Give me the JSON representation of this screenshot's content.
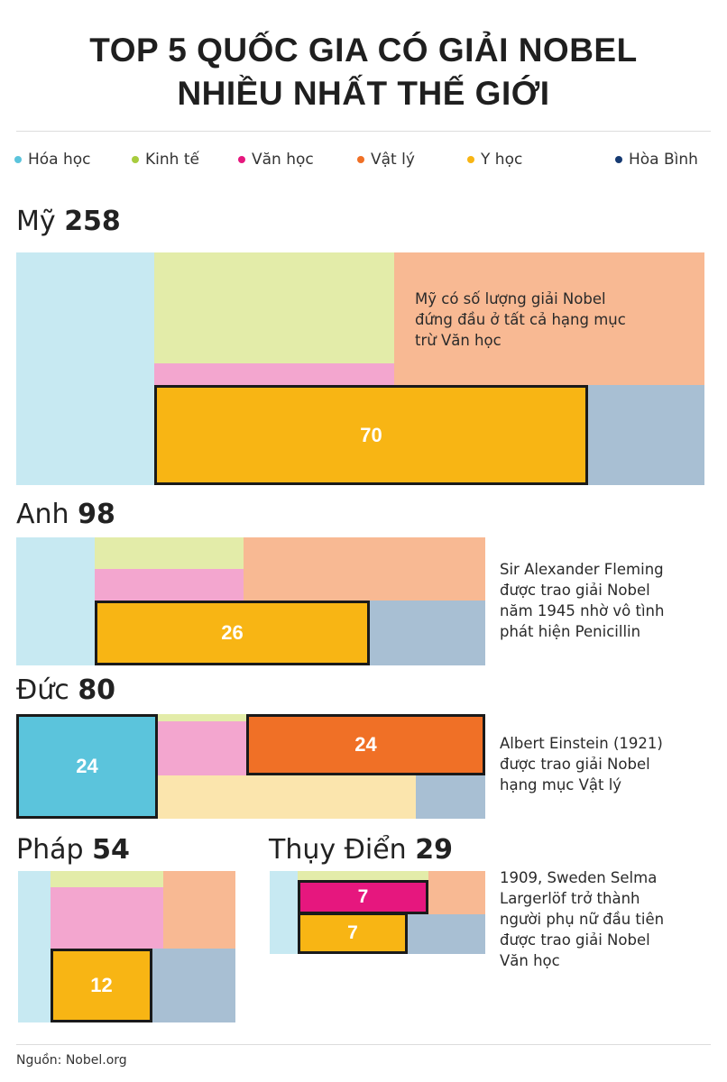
{
  "header": {
    "title_line1": "TOP 5 QUỐC GIA CÓ GIẢI NOBEL",
    "title_line2": "NHIỀU NHẤT THẾ GIỚI"
  },
  "legend": [
    {
      "label": "Hóa học",
      "color": "#5bc4dc"
    },
    {
      "label": "Kinh tế",
      "color": "#a8cc3e"
    },
    {
      "label": "Văn học",
      "color": "#e6177e"
    },
    {
      "label": "Vật lý",
      "color": "#f07026"
    },
    {
      "label": "Y học",
      "color": "#f8b514"
    },
    {
      "label": "Hòa Bình",
      "color": "#163a72"
    }
  ],
  "chart_data": {
    "type": "treemap",
    "title": "TOP 5 QUỐC GIA CÓ GIẢI NOBEL NHIỀU NHẤT THẾ GIỚI",
    "categories": [
      "Hóa học",
      "Kinh tế",
      "Văn học",
      "Vật lý",
      "Y học",
      "Hòa Bình"
    ],
    "countries": [
      {
        "name": "Mỹ",
        "total": "258",
        "highlights": [
          {
            "category": "Y học",
            "value": "70"
          }
        ],
        "note": [
          "Mỹ có số lượng giải Nobel",
          "đứng đầu ở tất cả hạng mục",
          "trừ Văn học"
        ]
      },
      {
        "name": "Anh",
        "total": "98",
        "highlights": [
          {
            "category": "Y học",
            "value": "26"
          }
        ],
        "note": [
          "Sir Alexander Fleming",
          "được trao giải Nobel",
          "năm 1945 nhờ vô tình",
          "phát hiện Penicillin"
        ]
      },
      {
        "name": "Đức",
        "total": "80",
        "highlights": [
          {
            "category": "Hóa học",
            "value": "24"
          },
          {
            "category": "Vật lý",
            "value": "24"
          }
        ],
        "note": [
          "Albert Einstein (1921)",
          "được trao giải Nobel",
          "hạng mục Vật lý"
        ]
      },
      {
        "name": "Pháp",
        "total": "54",
        "highlights": [
          {
            "category": "Y học",
            "value": "12"
          }
        ],
        "note": []
      },
      {
        "name": "Thụy Điển",
        "total": "29",
        "highlights": [
          {
            "category": "Văn học",
            "value": "7"
          },
          {
            "category": "Y học",
            "value": "7"
          }
        ],
        "note": [
          "1909, Sweden Selma",
          "Largerlöf trở thành",
          "người phụ nữ đầu tiên",
          "được trao giải Nobel",
          "Văn học"
        ]
      }
    ]
  },
  "footer": {
    "source": "Nguồn: Nobel.org"
  }
}
